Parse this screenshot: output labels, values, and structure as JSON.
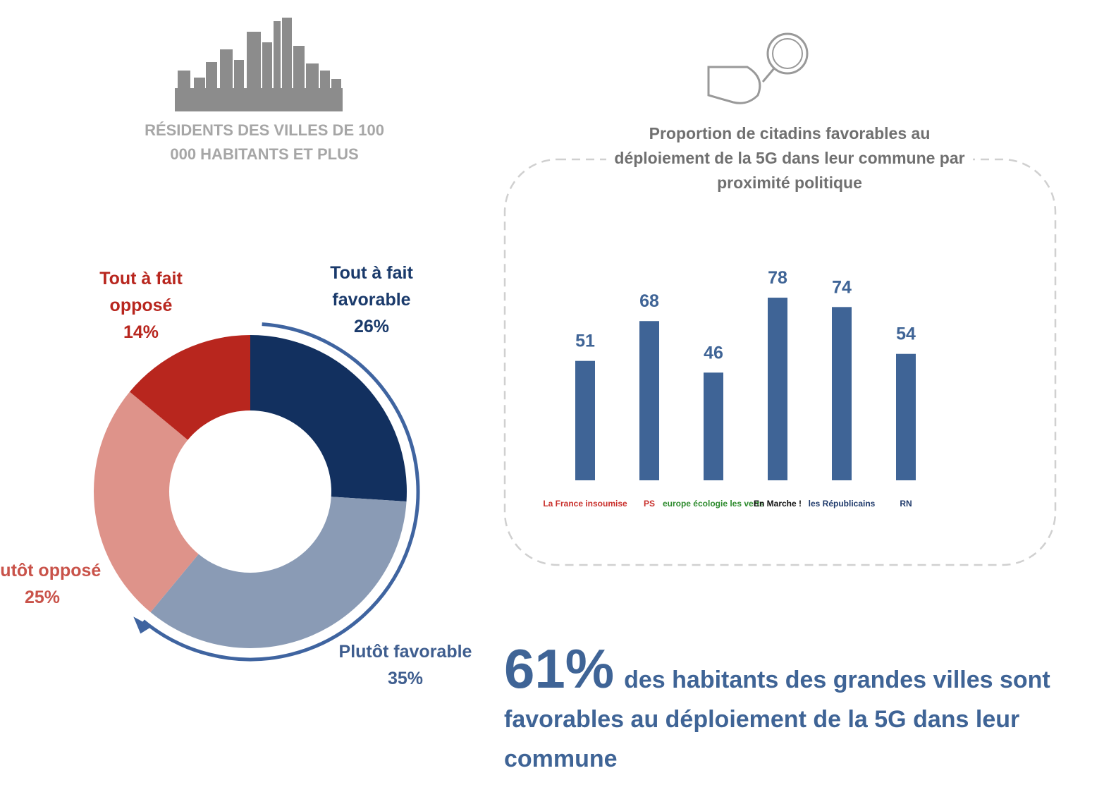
{
  "header": {
    "title": "RÉSIDENTS DES VILLES DE 100 000 HABITANTS ET PLUS"
  },
  "chart_data": [
    {
      "type": "donut",
      "categories": [
        "Tout à fait favorable",
        "Plutôt favorable",
        "Plutôt opposé",
        "Tout à fait opposé"
      ],
      "values": [
        26,
        35,
        25,
        14
      ],
      "value_labels": [
        "26%",
        "35%",
        "25%",
        "14%"
      ],
      "colors": [
        "#12305f",
        "#8a9bb5",
        "#de938a",
        "#b8261e"
      ],
      "label_colors": [
        "#1a3a6b",
        "#3f5e8f",
        "#c9534a",
        "#b8261e"
      ]
    },
    {
      "type": "bar",
      "title": "Proportion de citadins favorables au déploiement de la 5G dans leur commune par proximité politique",
      "categories": [
        "La France insoumise",
        "PS",
        "europe écologie les verts",
        "En Marche !",
        "les Républicains",
        "RN"
      ],
      "values": [
        51,
        68,
        46,
        78,
        74,
        54
      ],
      "color": "#3f6496",
      "ylim": [
        0,
        100
      ]
    }
  ],
  "summary": {
    "figure": "61%",
    "text": "des habitants des grandes villes sont favorables au déploiement de la 5G dans leur commune"
  }
}
